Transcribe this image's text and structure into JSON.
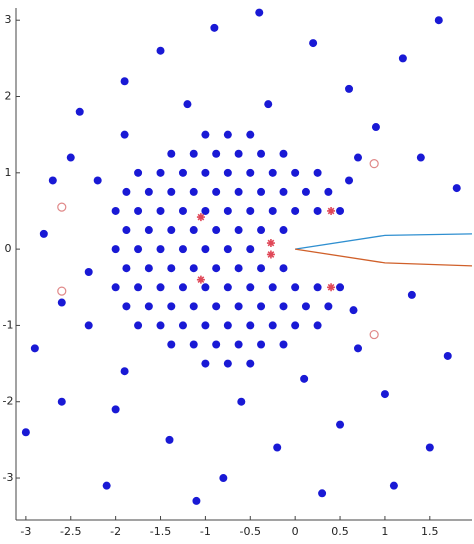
{
  "chart_data": {
    "type": "scatter",
    "xlim": [
      -3.11,
      1.97
    ],
    "ylim": [
      -3.55,
      3.16
    ],
    "xticks": [
      -3,
      -2.5,
      -2,
      -1.5,
      -1,
      -0.5,
      0,
      0.5,
      1,
      1.5
    ],
    "yticks": [
      -3,
      -2,
      -1,
      0,
      1,
      2,
      3
    ],
    "grid": false,
    "series": [
      {
        "marker": "dot",
        "color": "#0000d0",
        "x": [
          -1.0,
          -0.75,
          -0.5,
          -1.38,
          -1.13,
          -0.88,
          -0.63,
          -0.38,
          -0.13,
          -1.75,
          -1.5,
          -1.25,
          -1.0,
          -0.75,
          -0.5,
          -0.25,
          0,
          0.25,
          -1.88,
          -1.63,
          -1.38,
          -1.13,
          -0.88,
          -0.63,
          -0.38,
          -0.13,
          0.12,
          0.37,
          -2.0,
          -1.75,
          -1.5,
          -1.25,
          -1.0,
          -0.75,
          -0.5,
          -0.25,
          0,
          0.25,
          0.5,
          -1.88,
          -1.63,
          -1.38,
          -1.13,
          -0.88,
          -0.63,
          -0.38,
          -0.13,
          -2.0,
          -1.75,
          -1.5,
          -1.25,
          -1.0,
          -0.75,
          -0.5,
          -1.88,
          -1.63,
          -1.38,
          -1.13,
          -0.88,
          -0.63,
          -0.38,
          -0.13,
          -2.0,
          -1.75,
          -1.5,
          -1.25,
          -1.0,
          -0.75,
          -0.5,
          -0.25,
          0,
          0.25,
          0.5,
          -1.88,
          -1.63,
          -1.38,
          -1.13,
          -0.88,
          -0.63,
          -0.38,
          -0.13,
          0.12,
          0.37,
          -1.75,
          -1.5,
          -1.25,
          -1.0,
          -0.75,
          -0.5,
          -0.25,
          0,
          0.25,
          -1.38,
          -1.13,
          -0.88,
          -0.63,
          -0.38,
          -0.13,
          -1.0,
          -0.75,
          -0.5,
          -2.5,
          -2.8,
          -2.3,
          -2.9,
          -2.4,
          -1.9,
          -1.5,
          -0.9,
          -0.4,
          0.2,
          0.6,
          1.2,
          1.6,
          0.9,
          1.4,
          1.8,
          1.3,
          1.7,
          1.0,
          0.5,
          1.5,
          -0.2,
          -0.8,
          -1.4,
          -2.0,
          -2.6,
          -3.0,
          -2.1,
          -1.1,
          0.3,
          1.1,
          -2.2,
          -2.3,
          -1.9,
          -1.9,
          0.7,
          0.7,
          -0.3,
          -1.2,
          -0.6,
          0.1,
          0.6,
          0.65,
          -2.7,
          -2.6
        ],
        "y": [
          1.5,
          1.5,
          1.5,
          1.25,
          1.25,
          1.25,
          1.25,
          1.25,
          1.25,
          1.0,
          1.0,
          1.0,
          1.0,
          1.0,
          1.0,
          1.0,
          1.0,
          1.0,
          0.75,
          0.75,
          0.75,
          0.75,
          0.75,
          0.75,
          0.75,
          0.75,
          0.75,
          0.75,
          0.5,
          0.5,
          0.5,
          0.5,
          0.5,
          0.5,
          0.5,
          0.5,
          0.5,
          0.5,
          0.5,
          0.25,
          0.25,
          0.25,
          0.25,
          0.25,
          0.25,
          0.25,
          0.25,
          0,
          0,
          0,
          0,
          0,
          0,
          0,
          -0.25,
          -0.25,
          -0.25,
          -0.25,
          -0.25,
          -0.25,
          -0.25,
          -0.25,
          -0.5,
          -0.5,
          -0.5,
          -0.5,
          -0.5,
          -0.5,
          -0.5,
          -0.5,
          -0.5,
          -0.5,
          -0.5,
          -0.75,
          -0.75,
          -0.75,
          -0.75,
          -0.75,
          -0.75,
          -0.75,
          -0.75,
          -0.75,
          -0.75,
          -1.0,
          -1.0,
          -1.0,
          -1.0,
          -1.0,
          -1.0,
          -1.0,
          -1.0,
          -1.0,
          -1.25,
          -1.25,
          -1.25,
          -1.25,
          -1.25,
          -1.25,
          -1.5,
          -1.5,
          -1.5,
          1.2,
          0.2,
          -1.0,
          -1.3,
          1.8,
          2.2,
          2.6,
          2.9,
          3.1,
          2.7,
          2.1,
          2.5,
          3.0,
          1.6,
          1.2,
          0.8,
          -0.6,
          -1.4,
          -1.9,
          -2.3,
          -2.6,
          -2.6,
          -3.0,
          -2.5,
          -2.1,
          -2.0,
          -2.4,
          -3.1,
          -3.3,
          -3.2,
          -3.1,
          0.9,
          -0.3,
          1.5,
          -1.6,
          1.2,
          -1.3,
          1.9,
          1.9,
          -2.0,
          -1.7,
          0.9,
          -0.8,
          0.9,
          -0.7
        ]
      },
      {
        "marker": "star",
        "color": "#e04858",
        "x": [
          -1.05,
          -1.05,
          -0.27,
          -0.27,
          0.4,
          0.4
        ],
        "y": [
          0.42,
          -0.4,
          0.08,
          -0.07,
          0.5,
          -0.5
        ]
      },
      {
        "marker": "circle",
        "color": "#e08888",
        "x": [
          0.88,
          0.88,
          -2.6,
          -2.6
        ],
        "y": [
          1.12,
          -1.12,
          0.55,
          -0.55
        ]
      },
      {
        "marker": "line",
        "color": "#2f8fd0",
        "x": [
          0,
          1,
          1.97
        ],
        "y": [
          0,
          0.18,
          0.2
        ]
      },
      {
        "marker": "line",
        "color": "#d0602a",
        "x": [
          0,
          1,
          1.97
        ],
        "y": [
          0,
          -0.18,
          -0.22
        ]
      }
    ]
  }
}
